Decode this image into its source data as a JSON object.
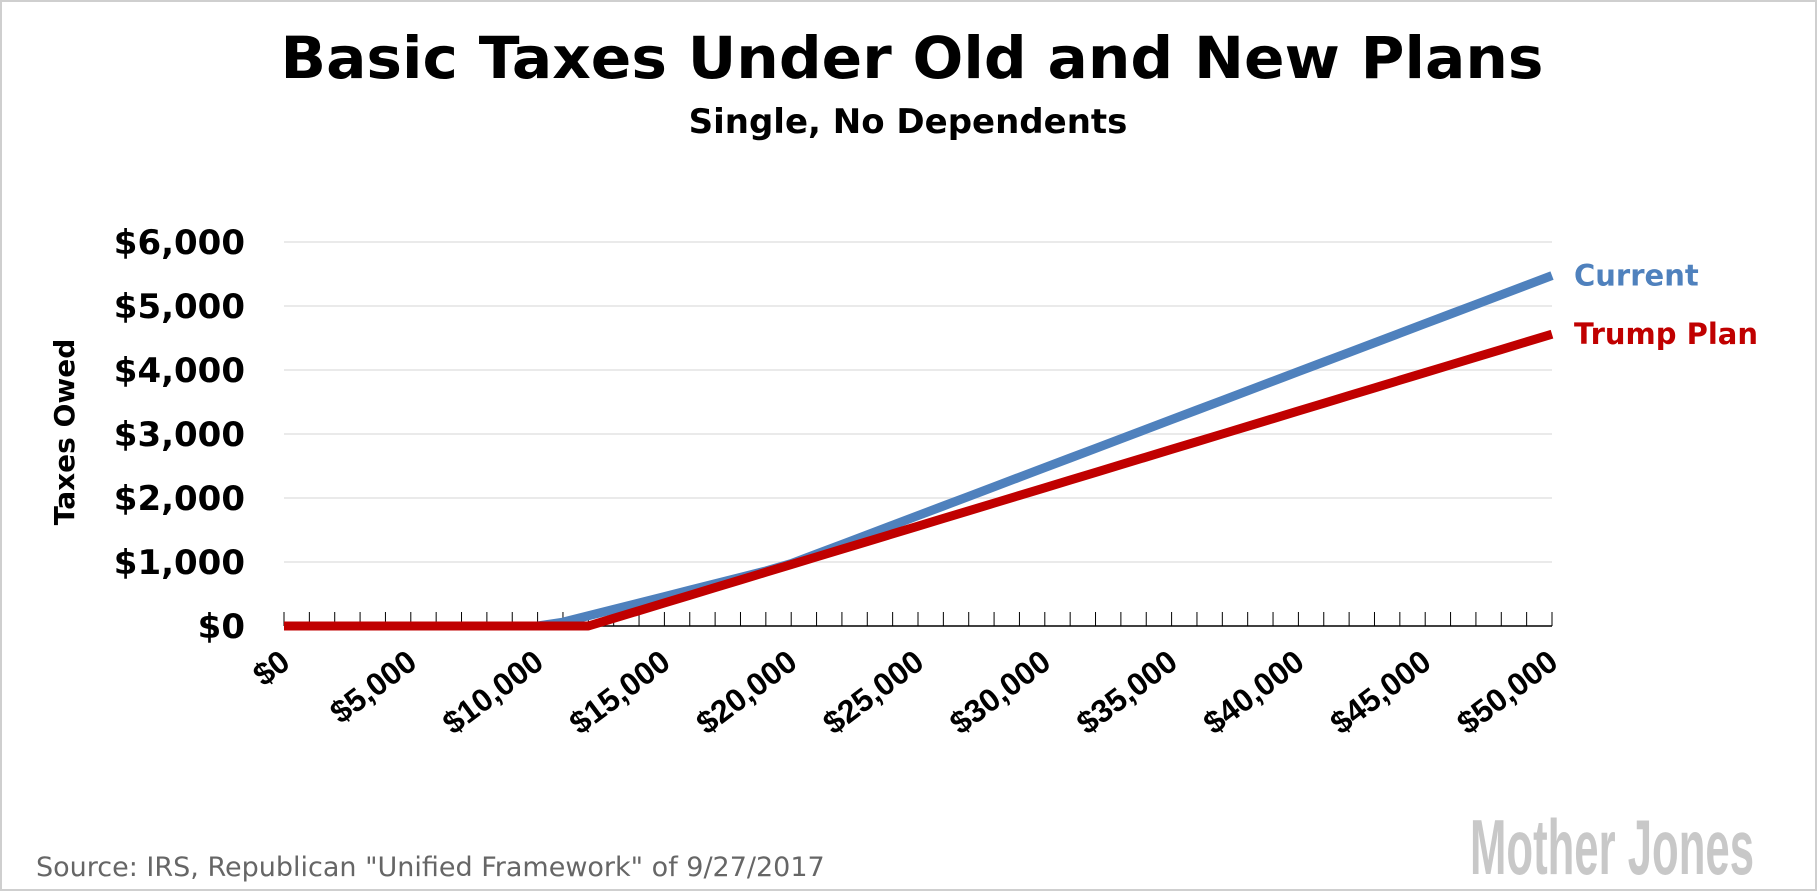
{
  "chart_data": {
    "type": "line",
    "title": "Basic Taxes Under Old and New Plans",
    "subtitle": "Single, No Dependents",
    "xlabel": "",
    "ylabel": "Taxes Owed",
    "xlim": [
      0,
      50000
    ],
    "ylim": [
      0,
      6000
    ],
    "grid": true,
    "x_ticks": [
      0,
      5000,
      10000,
      15000,
      20000,
      25000,
      30000,
      35000,
      40000,
      45000,
      50000
    ],
    "x_tick_labels": [
      "$0",
      "$5,000",
      "$10,000",
      "$15,000",
      "$20,000",
      "$25,000",
      "$30,000",
      "$35,000",
      "$40,000",
      "$45,000",
      "$50,000"
    ],
    "y_ticks": [
      0,
      1000,
      2000,
      3000,
      4000,
      5000,
      6000
    ],
    "y_tick_labels": [
      "$0",
      "$1,000",
      "$2,000",
      "$3,000",
      "$4,000",
      "$5,000",
      "$6,000"
    ],
    "legend_placement": "right, at line ends",
    "x": [
      0,
      1000,
      2000,
      3000,
      4000,
      5000,
      6000,
      7000,
      8000,
      9000,
      10000,
      11000,
      12000,
      13000,
      14000,
      15000,
      16000,
      17000,
      18000,
      19000,
      20000,
      21000,
      22000,
      23000,
      24000,
      25000,
      26000,
      27000,
      28000,
      29000,
      30000,
      31000,
      32000,
      33000,
      34000,
      35000,
      36000,
      37000,
      38000,
      39000,
      40000,
      41000,
      42000,
      43000,
      44000,
      45000,
      46000,
      47000,
      48000,
      49000,
      50000
    ],
    "series": [
      {
        "name": "Current",
        "color": "#4f81bd",
        "values": [
          0,
          0,
          0,
          0,
          0,
          0,
          0,
          0,
          0,
          0,
          0,
          60,
          160,
          260,
          360,
          460,
          560,
          660,
          760,
          860,
          975,
          1125,
          1275,
          1425,
          1575,
          1725,
          1875,
          2025,
          2175,
          2325,
          2475,
          2625,
          2775,
          2925,
          3075,
          3225,
          3375,
          3525,
          3675,
          3825,
          3975,
          4125,
          4275,
          4425,
          4575,
          4725,
          4875,
          5025,
          5175,
          5325,
          5475
        ]
      },
      {
        "name": "Trump Plan",
        "color": "#c00000",
        "values": [
          0,
          0,
          0,
          0,
          0,
          0,
          0,
          0,
          0,
          0,
          0,
          0,
          0,
          120,
          240,
          360,
          480,
          600,
          720,
          840,
          960,
          1080,
          1200,
          1320,
          1440,
          1560,
          1680,
          1800,
          1920,
          2040,
          2160,
          2280,
          2400,
          2520,
          2640,
          2760,
          2880,
          3000,
          3120,
          3240,
          3360,
          3480,
          3600,
          3720,
          3840,
          3960,
          4080,
          4200,
          4320,
          4440,
          4560
        ]
      }
    ]
  },
  "footer": {
    "source": "Source: IRS, Republican \"Unified Framework\" of 9/27/2017",
    "logo": "Mother Jones"
  }
}
